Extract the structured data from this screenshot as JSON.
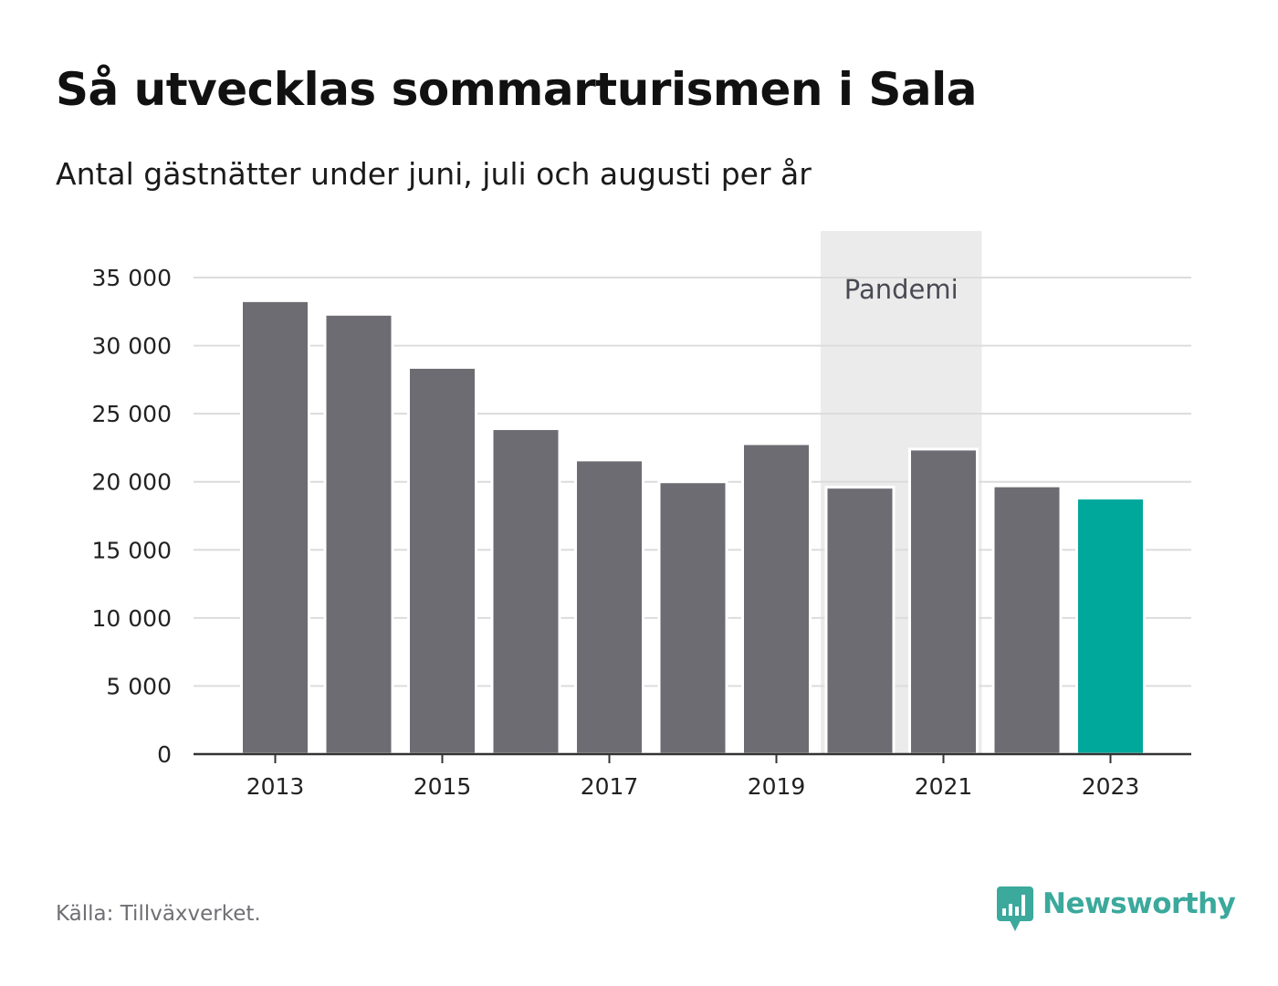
{
  "title": "Så utvecklas sommarturismen i Sala",
  "subtitle": "Antal gästnätter under juni, juli och augusti per år",
  "source": "Källa: Tillväxverket.",
  "brand": {
    "name": "Newsworthy",
    "icon": "bar-chart-speech-bubble-icon",
    "color": "#3ba99c"
  },
  "chart_data": {
    "type": "bar",
    "categories": [
      "2013",
      "2014",
      "2015",
      "2016",
      "2017",
      "2018",
      "2019",
      "2020",
      "2021",
      "2022",
      "2023"
    ],
    "values": [
      33300,
      32300,
      28400,
      23900,
      21600,
      20000,
      22800,
      19600,
      22400,
      19700,
      18800
    ],
    "x_tick_labels": [
      "2013",
      "2015",
      "2017",
      "2019",
      "2021",
      "2023"
    ],
    "y_ticks": [
      0,
      5000,
      10000,
      15000,
      20000,
      25000,
      30000,
      35000
    ],
    "y_tick_labels": [
      "0",
      "5 000",
      "10 000",
      "15 000",
      "20 000",
      "25 000",
      "30 000",
      "35 000"
    ],
    "ylim": [
      0,
      35000
    ],
    "grid": true,
    "highlight": {
      "category": "2023",
      "color": "#00a79b"
    },
    "bar_color": "#6d6c72",
    "annotation": {
      "label": "Pandemi",
      "from": "2020",
      "to": "2021",
      "color": "#ebebeb"
    }
  }
}
